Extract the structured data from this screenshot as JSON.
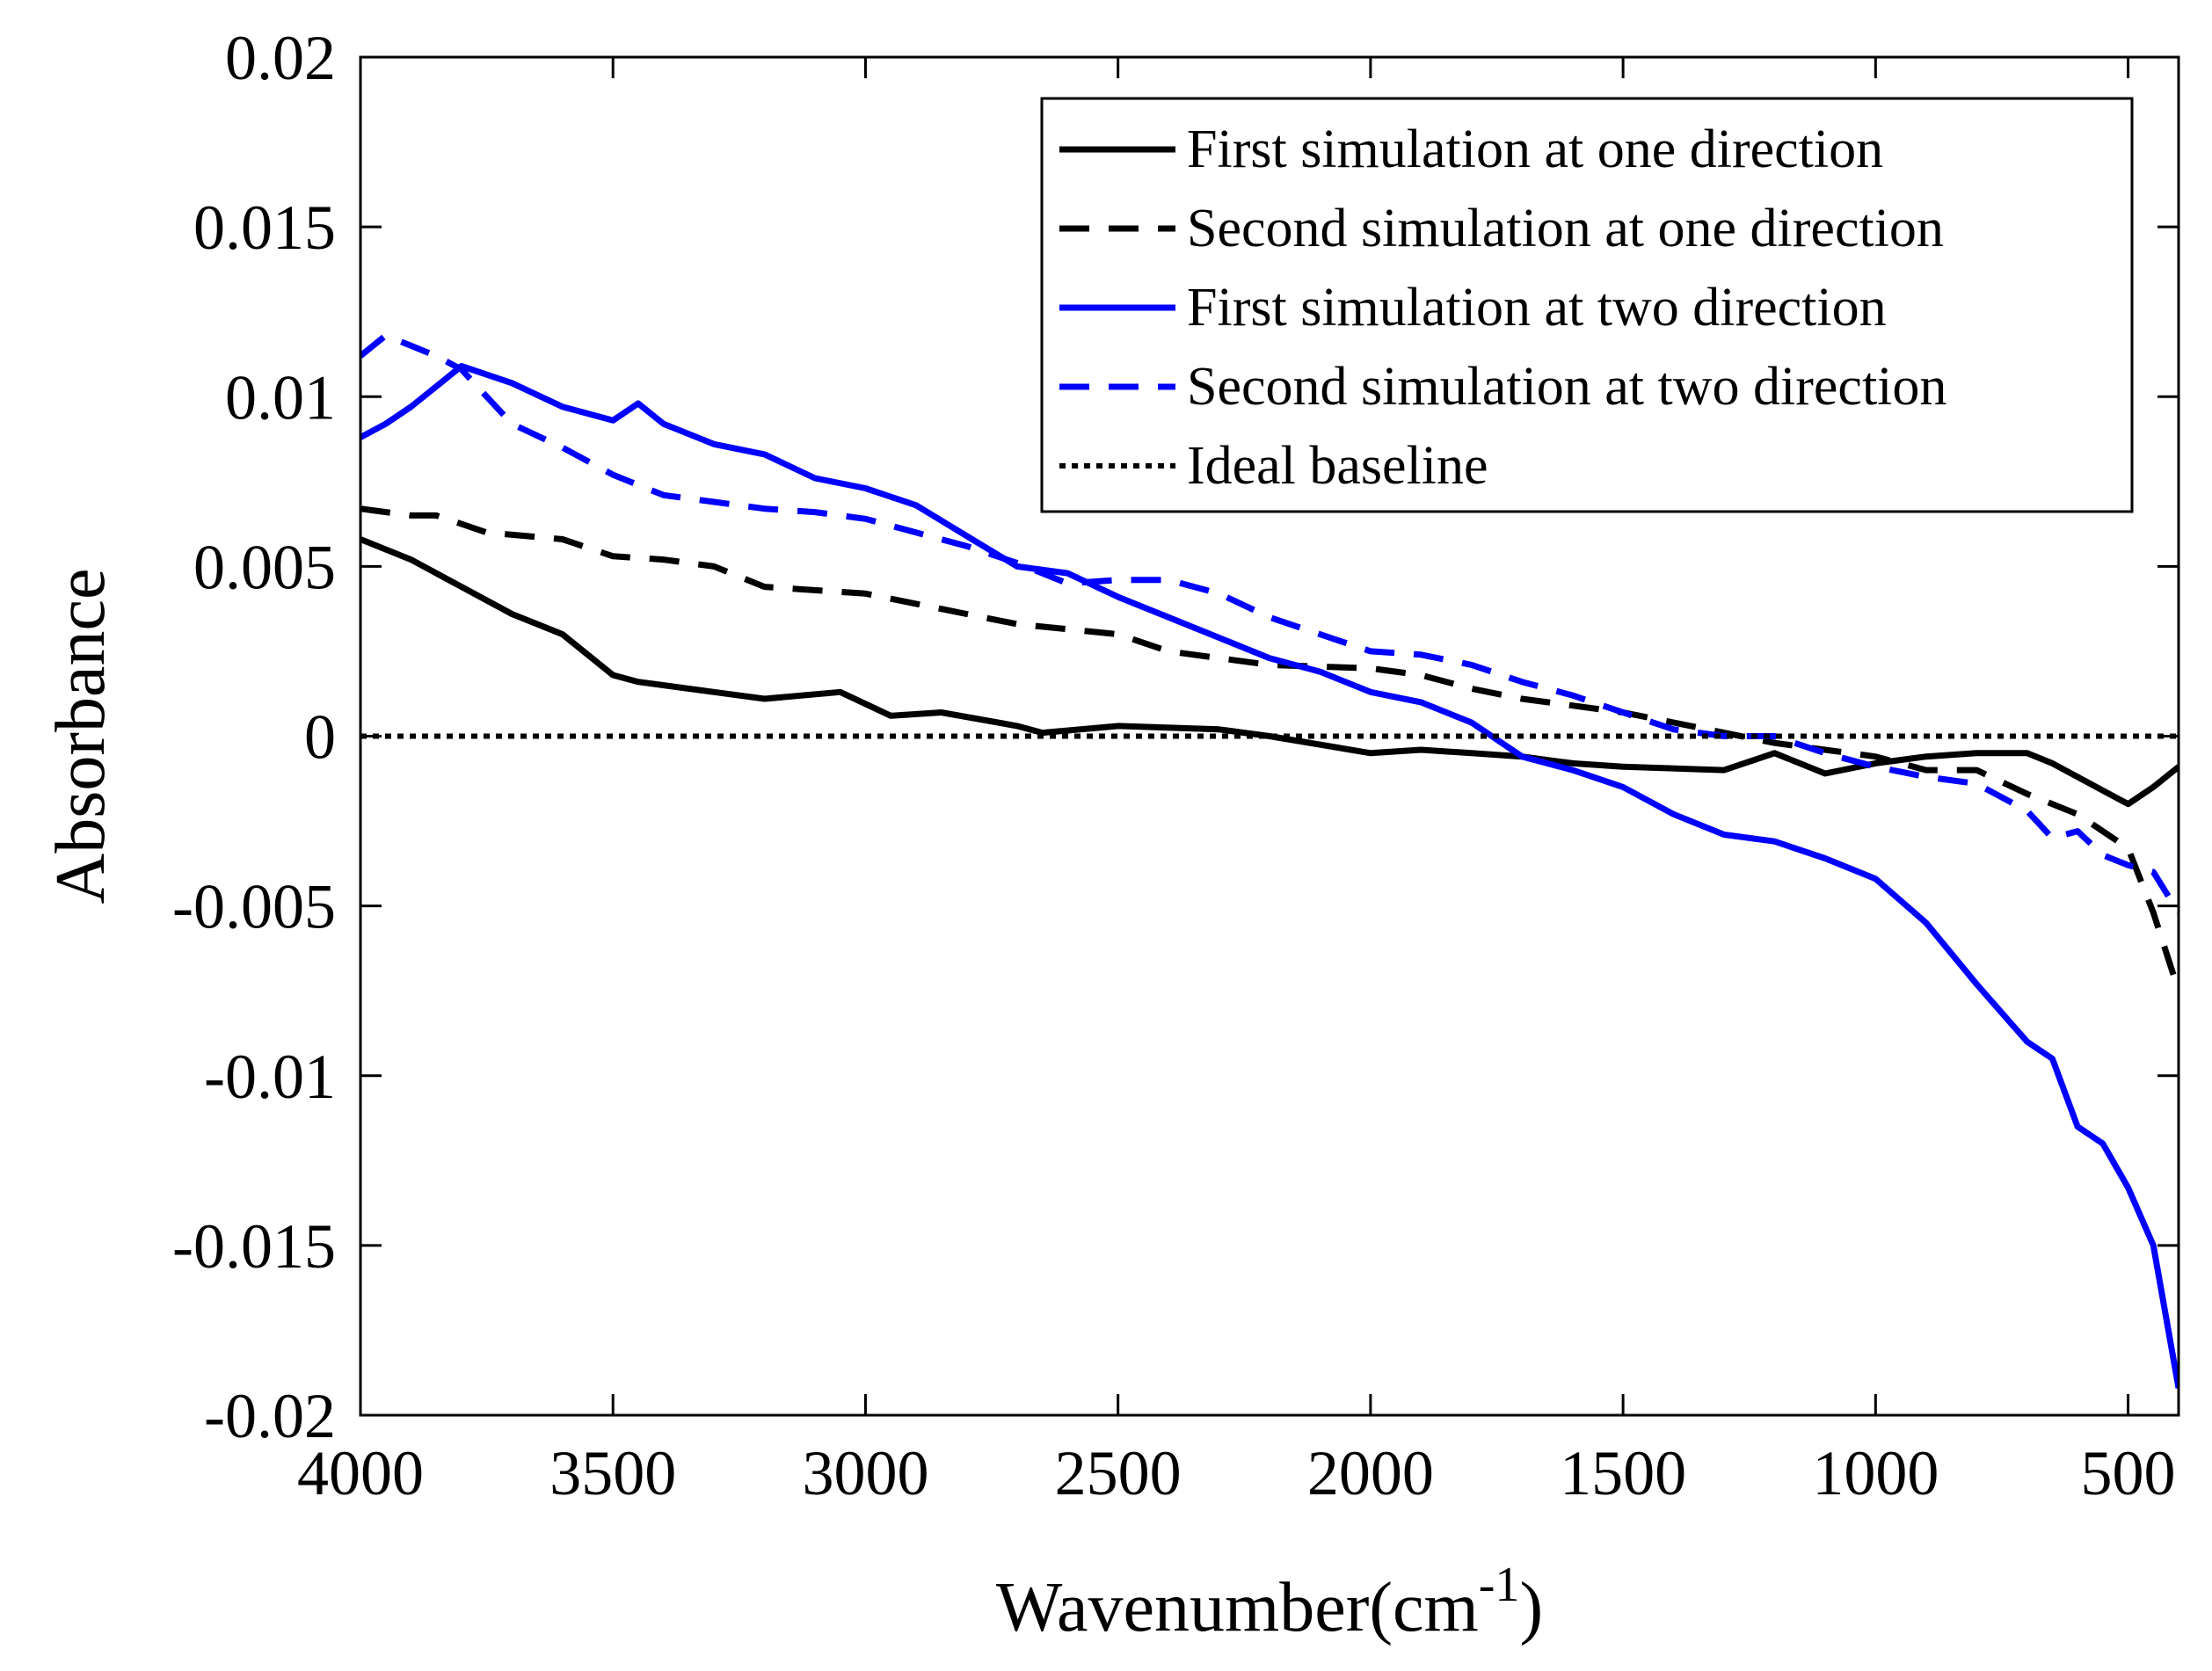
{
  "chart_data": {
    "type": "line",
    "title": "",
    "xlabel": "Wavenumber(cm",
    "xlabel_superscript": "-1",
    "xlabel_suffix": ")",
    "ylabel": "Absorbance",
    "xlim": [
      4000,
      400
    ],
    "ylim": [
      -0.02,
      0.02
    ],
    "x_reversed": true,
    "grid": false,
    "legend_position": "top-right",
    "xticks": [
      4000,
      3500,
      3000,
      2500,
      2000,
      1500,
      1000,
      500
    ],
    "xtick_labels": [
      "4000",
      "3500",
      "3000",
      "2500",
      "2000",
      "1500",
      "1000",
      "500"
    ],
    "yticks": [
      0.02,
      0.015,
      0.01,
      0.005,
      0,
      -0.005,
      -0.01,
      -0.015,
      -0.02
    ],
    "ytick_labels": [
      "0.02",
      "0.015",
      "0.01",
      "0.005",
      "0",
      "-0.005",
      "-0.01",
      "-0.015",
      "-0.02"
    ],
    "series": [
      {
        "name": "First simulation at one direction",
        "color": "#000000",
        "dash": "solid",
        "x": [
          4000,
          3900,
          3800,
          3700,
          3600,
          3500,
          3450,
          3300,
          3200,
          3050,
          2950,
          2850,
          2700,
          2650,
          2500,
          2300,
          2200,
          2000,
          1900,
          1800,
          1700,
          1600,
          1500,
          1300,
          1200,
          1100,
          1000,
          900,
          800,
          700,
          650,
          550,
          500,
          450,
          400
        ],
        "y": [
          0.0058,
          0.0052,
          0.0044,
          0.0036,
          0.003,
          0.0018,
          0.0016,
          0.0013,
          0.0011,
          0.0013,
          0.0006,
          0.0007,
          0.0003,
          0.0001,
          0.0003,
          0.0002,
          0.0,
          -0.0005,
          -0.0004,
          -0.0005,
          -0.0006,
          -0.0008,
          -0.0009,
          -0.001,
          -0.0005,
          -0.0011,
          -0.0008,
          -0.0006,
          -0.0005,
          -0.0005,
          -0.0008,
          -0.0016,
          -0.002,
          -0.0015,
          -0.0009
        ]
      },
      {
        "name": "Second simulation at one direction",
        "color": "#000000",
        "dash": "dashed",
        "x": [
          4000,
          3900,
          3850,
          3750,
          3600,
          3500,
          3400,
          3300,
          3200,
          3000,
          2900,
          2800,
          2700,
          2500,
          2400,
          2300,
          2200,
          2000,
          1900,
          1800,
          1700,
          1600,
          1500,
          1400,
          1300,
          1200,
          1100,
          1000,
          900,
          800,
          700,
          600,
          500,
          450,
          400
        ],
        "y": [
          0.0067,
          0.0065,
          0.0065,
          0.006,
          0.0058,
          0.0053,
          0.0052,
          0.005,
          0.0044,
          0.0042,
          0.0039,
          0.0036,
          0.0033,
          0.003,
          0.0025,
          0.0023,
          0.0021,
          0.002,
          0.0018,
          0.0014,
          0.0011,
          0.0009,
          0.0007,
          0.0004,
          0.0001,
          -0.0002,
          -0.0004,
          -0.0006,
          -0.001,
          -0.001,
          -0.0017,
          -0.0023,
          -0.0033,
          -0.0052,
          -0.0075
        ]
      },
      {
        "name": "First simulation at two direction",
        "color": "#0000ff",
        "dash": "solid",
        "x": [
          4000,
          3950,
          3900,
          3850,
          3800,
          3700,
          3600,
          3500,
          3450,
          3400,
          3300,
          3200,
          3100,
          3000,
          2900,
          2800,
          2700,
          2600,
          2500,
          2400,
          2300,
          2200,
          2100,
          2000,
          1900,
          1800,
          1700,
          1600,
          1500,
          1400,
          1300,
          1200,
          1100,
          1000,
          900,
          800,
          700,
          650,
          600,
          550,
          500,
          450,
          400
        ],
        "y": [
          0.0088,
          0.0092,
          0.0097,
          0.0103,
          0.0109,
          0.0104,
          0.0097,
          0.0093,
          0.0098,
          0.0092,
          0.0086,
          0.0083,
          0.0076,
          0.0073,
          0.0068,
          0.0059,
          0.005,
          0.0048,
          0.0041,
          0.0035,
          0.0029,
          0.0023,
          0.0019,
          0.0013,
          0.001,
          0.0004,
          -0.0006,
          -0.001,
          -0.0015,
          -0.0023,
          -0.0029,
          -0.0031,
          -0.0036,
          -0.0042,
          -0.0055,
          -0.0073,
          -0.009,
          -0.0095,
          -0.0115,
          -0.012,
          -0.0133,
          -0.015,
          -0.0192
        ]
      },
      {
        "name": "Second simulation at two direction",
        "color": "#0000ff",
        "dash": "dashed",
        "x": [
          4000,
          3950,
          3900,
          3850,
          3800,
          3750,
          3700,
          3600,
          3500,
          3400,
          3300,
          3200,
          3100,
          3000,
          2900,
          2800,
          2700,
          2600,
          2500,
          2400,
          2300,
          2200,
          2100,
          2000,
          1900,
          1800,
          1700,
          1600,
          1500,
          1400,
          1300,
          1200,
          1100,
          1000,
          900,
          800,
          700,
          650,
          600,
          550,
          500,
          450,
          400
        ],
        "y": [
          0.0112,
          0.0118,
          0.0115,
          0.0112,
          0.0108,
          0.01,
          0.0092,
          0.0085,
          0.0077,
          0.0071,
          0.0069,
          0.0067,
          0.0066,
          0.0064,
          0.006,
          0.0056,
          0.0051,
          0.0045,
          0.0046,
          0.0046,
          0.0042,
          0.0035,
          0.003,
          0.0025,
          0.0024,
          0.0021,
          0.0016,
          0.0012,
          0.0007,
          0.0002,
          0.0,
          0.0,
          -0.0005,
          -0.0009,
          -0.0012,
          -0.0014,
          -0.0022,
          -0.003,
          -0.0028,
          -0.0035,
          -0.0038,
          -0.004,
          -0.0052
        ]
      },
      {
        "name": "Ideal baseline",
        "color": "#000000",
        "dash": "dotted",
        "x": [
          4000,
          400
        ],
        "y": [
          0,
          0
        ]
      }
    ]
  }
}
